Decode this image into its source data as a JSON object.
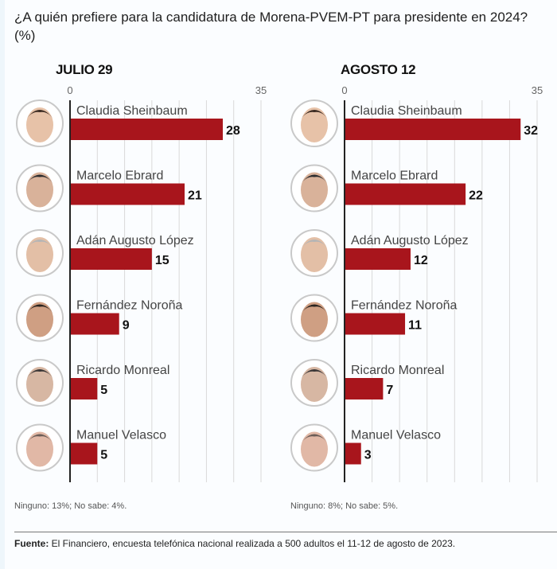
{
  "title": "¿A quién prefiere para la candidatura de Morena-PVEM-PT para presidente en 2024?  (%)",
  "colors": {
    "bar": "#a8151c",
    "axis": "#222222",
    "grid": "#d9d9d9",
    "text": "#333333"
  },
  "chart_data": [
    {
      "type": "bar",
      "orientation": "horizontal",
      "title": "JULIO 29",
      "xlim": [
        0,
        35
      ],
      "tick_labels": [
        "0",
        "35"
      ],
      "grid": true,
      "categories": [
        "Claudia Sheinbaum",
        "Marcelo Ebrard",
        "Adán Augusto López",
        "Fernández Noroña",
        "Ricardo Monreal",
        "Manuel Velasco"
      ],
      "values": [
        28,
        21,
        15,
        9,
        5,
        5
      ],
      "value_labels": [
        "28",
        "21",
        "15",
        "9",
        "5",
        "5"
      ],
      "note": "Ninguno: 13%; No sabe: 4%."
    },
    {
      "type": "bar",
      "orientation": "horizontal",
      "title": "AGOSTO 12",
      "xlim": [
        0,
        35
      ],
      "tick_labels": [
        "0",
        "35"
      ],
      "grid": true,
      "categories": [
        "Claudia Sheinbaum",
        "Marcelo Ebrard",
        "Adán Augusto López",
        "Fernández Noroña",
        "Ricardo Monreal",
        "Manuel Velasco"
      ],
      "values": [
        32,
        22,
        12,
        11,
        7,
        3
      ],
      "value_labels": [
        "32",
        "22",
        "12",
        "11",
        "7",
        "3"
      ],
      "note": "Ninguno: 8%; No sabe: 5%."
    }
  ],
  "source": {
    "label": "Fuente:",
    "text": " El Financiero, encuesta telefónica nacional realizada a 500 adultos el 11-12 de agosto de 2023."
  }
}
